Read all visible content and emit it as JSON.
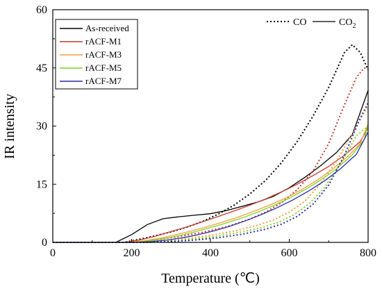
{
  "chart_data": {
    "type": "line",
    "xlabel": "Temperature (℃)",
    "ylabel": "IR intensity",
    "xlim": [
      0,
      800
    ],
    "ylim": [
      0,
      60
    ],
    "xticks": [
      0,
      200,
      400,
      600,
      800
    ],
    "yticks": [
      0,
      15,
      30,
      45,
      60
    ],
    "xtick_labels": [
      "0",
      "200",
      "400",
      "600",
      "800"
    ],
    "ytick_labels": [
      "0",
      "15",
      "30",
      "45",
      "60"
    ],
    "grid": false,
    "legend_placement": "top-left",
    "line_style_legend": {
      "placement": "top-right",
      "co_label": "CO",
      "co2_label": "CO",
      "co2_subscript": "2",
      "co_style": "dotted",
      "co2_style": "solid"
    },
    "series": [
      {
        "name": "As-received",
        "color": "#000000",
        "co2": {
          "x": [
            0,
            160,
            200,
            240,
            280,
            320,
            360,
            400,
            440,
            480,
            520,
            560,
            600,
            640,
            680,
            720,
            760,
            800
          ],
          "y": [
            0,
            0,
            2.0,
            4.6,
            6.1,
            6.6,
            7.0,
            7.4,
            8.2,
            9.3,
            10.4,
            11.9,
            14.1,
            16.8,
            19.8,
            23.2,
            27.8,
            39.2
          ]
        },
        "co": {
          "x": [
            0,
            180,
            220,
            260,
            300,
            340,
            380,
            420,
            460,
            500,
            540,
            580,
            620,
            660,
            700,
            740,
            760,
            780,
            800
          ],
          "y": [
            0,
            0,
            0.8,
            1.7,
            2.7,
            3.9,
            5.4,
            7.3,
            9.6,
            12.5,
            16.0,
            20.5,
            26.0,
            32.5,
            40.0,
            49.0,
            51.0,
            49.0,
            44.5
          ]
        }
      },
      {
        "name": "rACF-M1",
        "color": "#c0392b",
        "co2": {
          "x": [
            0,
            180,
            220,
            260,
            300,
            340,
            380,
            420,
            460,
            500,
            540,
            580,
            620,
            660,
            700,
            740,
            780,
            800
          ],
          "y": [
            0,
            0,
            0.6,
            1.6,
            2.8,
            4.0,
            5.3,
            6.7,
            8.1,
            9.6,
            11.2,
            13.0,
            15.0,
            17.2,
            19.6,
            22.5,
            26.0,
            29.5
          ]
        },
        "co": {
          "x": [
            0,
            200,
            260,
            320,
            380,
            440,
            500,
            540,
            580,
            620,
            660,
            700,
            740,
            770,
            790,
            800
          ],
          "y": [
            0,
            0,
            0.6,
            1.5,
            2.6,
            4.0,
            6.0,
            7.8,
            10.2,
            13.6,
            18.3,
            25.5,
            35.5,
            42.5,
            45.0,
            44.8
          ]
        }
      },
      {
        "name": "rACF-M3",
        "color": "#f39c3a",
        "co2": {
          "x": [
            0,
            190,
            230,
            270,
            310,
            350,
            390,
            430,
            470,
            510,
            550,
            590,
            630,
            670,
            710,
            750,
            780,
            800
          ],
          "y": [
            0,
            0,
            0.4,
            1.0,
            1.9,
            2.9,
            4.0,
            5.2,
            6.5,
            8.0,
            9.6,
            11.4,
            13.5,
            16.0,
            18.9,
            22.3,
            25.5,
            30.5
          ]
        },
        "co": {
          "x": [
            0,
            210,
            280,
            340,
            400,
            460,
            520,
            560,
            600,
            640,
            680,
            720,
            760,
            790,
            800
          ],
          "y": [
            0,
            0,
            0.4,
            1.0,
            1.8,
            2.9,
            4.4,
            5.8,
            7.8,
            10.7,
            15.2,
            21.0,
            28.0,
            33.5,
            35.5
          ]
        }
      },
      {
        "name": "rACF-M5",
        "color": "#7ed321",
        "co2": {
          "x": [
            0,
            200,
            240,
            280,
            320,
            360,
            400,
            440,
            480,
            520,
            560,
            600,
            640,
            680,
            720,
            760,
            790,
            800
          ],
          "y": [
            0,
            0,
            0.3,
            0.9,
            1.7,
            2.7,
            3.8,
            5.0,
            6.3,
            7.8,
            9.5,
            11.4,
            13.6,
            16.1,
            19.0,
            22.6,
            26.5,
            30.5
          ]
        },
        "co": {
          "x": [
            0,
            220,
            290,
            350,
            410,
            470,
            530,
            570,
            610,
            650,
            690,
            730,
            770,
            800
          ],
          "y": [
            0,
            0,
            0.3,
            0.8,
            1.5,
            2.5,
            3.8,
            5.1,
            7.0,
            9.9,
            14.2,
            20.2,
            27.5,
            30.0
          ]
        }
      },
      {
        "name": "rACF-M7",
        "color": "#2a2aa8",
        "co2": {
          "x": [
            0,
            210,
            250,
            290,
            330,
            370,
            410,
            450,
            490,
            530,
            570,
            610,
            650,
            690,
            730,
            770,
            800
          ],
          "y": [
            0,
            0,
            0.2,
            0.6,
            1.2,
            2.0,
            3.0,
            4.2,
            5.6,
            7.2,
            9.0,
            11.0,
            13.3,
            15.9,
            19.0,
            22.7,
            28.5
          ]
        },
        "co": {
          "x": [
            0,
            230,
            300,
            360,
            420,
            480,
            540,
            580,
            620,
            660,
            700,
            740,
            780,
            800
          ],
          "y": [
            0,
            0,
            0.2,
            0.6,
            1.2,
            2.1,
            3.4,
            4.7,
            6.7,
            9.8,
            14.8,
            22.5,
            32.0,
            36.0
          ]
        }
      }
    ]
  }
}
